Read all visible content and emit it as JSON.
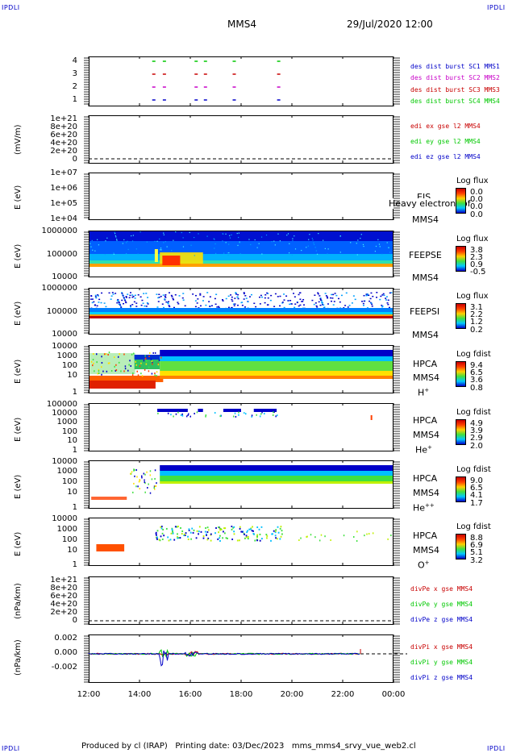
{
  "corners": {
    "tl": "IPDLI",
    "tr": "IPDLI",
    "bl": "IPDLI",
    "br": "IPDLI"
  },
  "header": {
    "spacecraft": "MMS4",
    "datetime": "29/Jul/2020 12:00"
  },
  "panels": [
    {
      "id": "burst",
      "ylabel": "",
      "yticks": [
        "4",
        "3",
        "2",
        "1"
      ],
      "legend": [
        {
          "text": "des dist burst SC1 MMS1",
          "color": "#0000c8"
        },
        {
          "text": "des dist burst SC2 MMS2",
          "color": "#c800c8"
        },
        {
          "text": "des dist burst SC3 MMS3",
          "color": "#c80000"
        },
        {
          "text": "des dist burst SC4 MMS4",
          "color": "#00c800"
        }
      ]
    },
    {
      "id": "edi",
      "ylabel": "(mV/m)",
      "yticks": [
        "1e+21",
        "8e+20",
        "6e+20",
        "4e+20",
        "2e+20",
        "0"
      ],
      "legend": [
        {
          "text": "edi ex gse l2 MMS4",
          "color": "#c80000"
        },
        {
          "text": "edi ey gse l2 MMS4",
          "color": "#00c800"
        },
        {
          "text": "edi ez gse l2 MMS4",
          "color": "#0000c8"
        }
      ]
    },
    {
      "id": "eis",
      "ylabel": "E (eV)",
      "yticks": [
        "1e+07",
        "1e+06",
        "1e+05",
        "1e+04"
      ],
      "side": [
        "EIS",
        "MMS4"
      ],
      "overlay": "Heavy electron tof",
      "cb": {
        "title": "Log flux",
        "vals": [
          "0.0",
          "0.0",
          "0.0",
          "0.0"
        ]
      }
    },
    {
      "id": "feepse",
      "ylabel": "E (eV)",
      "yticks": [
        "1000000",
        "100000",
        "10000"
      ],
      "side": [
        "FEEPSE",
        "MMS4"
      ],
      "cb": {
        "title": "Log flux",
        "vals": [
          "3.8",
          "2.3",
          "0.9",
          "-0.5"
        ]
      }
    },
    {
      "id": "feepsi",
      "ylabel": "E (eV)",
      "yticks": [
        "1000000",
        "100000",
        "10000"
      ],
      "side": [
        "FEEPSI",
        "MMS4"
      ],
      "cb": {
        "title": "Log flux",
        "vals": [
          "3.1",
          "2.2",
          "1.2",
          "0.2"
        ]
      }
    },
    {
      "id": "hpca_h",
      "ylabel": "E (eV)",
      "yticks": [
        "10000",
        "1000",
        "100",
        "10",
        "1"
      ],
      "side": [
        "HPCA",
        "MMS4"
      ],
      "species": "H",
      "species_sup": "+",
      "cb": {
        "title": "Log fdist",
        "vals": [
          "9.4",
          "6.5",
          "3.6",
          "0.8"
        ]
      }
    },
    {
      "id": "hpca_he",
      "ylabel": "E (eV)",
      "yticks": [
        "100000",
        "10000",
        "1000",
        "100",
        "10",
        "1"
      ],
      "side": [
        "HPCA",
        "MMS4"
      ],
      "species": "He",
      "species_sup": "+",
      "cb": {
        "title": "Log fdist",
        "vals": [
          "4.9",
          "3.9",
          "2.9",
          "2.0"
        ]
      }
    },
    {
      "id": "hpca_he2",
      "ylabel": "E (eV)",
      "yticks": [
        "10000",
        "1000",
        "100",
        "10",
        "1"
      ],
      "side": [
        "HPCA",
        "MMS4"
      ],
      "species": "He",
      "species_sup": "++",
      "cb": {
        "title": "Log fdist",
        "vals": [
          "9.0",
          "6.5",
          "4.1",
          "1.7"
        ]
      }
    },
    {
      "id": "hpca_o",
      "ylabel": "E (eV)",
      "yticks": [
        "10000",
        "1000",
        "100",
        "10",
        "1"
      ],
      "side": [
        "HPCA",
        "MMS4"
      ],
      "species": "O",
      "species_sup": "+",
      "cb": {
        "title": "Log fdist",
        "vals": [
          "8.8",
          "6.9",
          "5.1",
          "3.2"
        ]
      }
    },
    {
      "id": "divpe",
      "ylabel": "(nPa/km)",
      "yticks": [
        "1e+21",
        "8e+20",
        "6e+20",
        "4e+20",
        "2e+20",
        "0"
      ],
      "legend": [
        {
          "text": "divPe x gse MMS4",
          "color": "#c80000"
        },
        {
          "text": "divPe y gse MMS4",
          "color": "#00c800"
        },
        {
          "text": "divPe z gse MMS4",
          "color": "#0000c8"
        }
      ]
    },
    {
      "id": "divpi",
      "ylabel": "(nPa/km)",
      "yticks": [
        "0.002",
        "0.000",
        "-0.002"
      ],
      "legend": [
        {
          "text": "divPi x gse MMS4",
          "color": "#c80000"
        },
        {
          "text": "divPi y gse MMS4",
          "color": "#00c800"
        },
        {
          "text": "divPi z gse MMS4",
          "color": "#0000c8"
        }
      ]
    }
  ],
  "chart_data": {
    "type": "line",
    "title": "MMS4",
    "xlabel": "",
    "x_ticks": [
      "12:00",
      "14:00",
      "16:00",
      "18:00",
      "20:00",
      "22:00",
      "00:00"
    ],
    "xlim": [
      "12:00",
      "00:00"
    ],
    "burst_intervals": [
      {
        "name": "des dist burst SC4 MMS4",
        "level": 4,
        "times": [
          "14:30",
          "14:55",
          "16:10",
          "16:32",
          "17:40",
          "19:25"
        ]
      },
      {
        "name": "des dist burst SC3 MMS3",
        "level": 3,
        "times": [
          "14:30",
          "14:55",
          "16:10",
          "16:32",
          "17:40",
          "19:25"
        ]
      },
      {
        "name": "des dist burst SC2 MMS2",
        "level": 2,
        "times": [
          "14:30",
          "14:55",
          "16:10",
          "16:32",
          "17:40",
          "19:25"
        ]
      },
      {
        "name": "des dist burst SC1 MMS1",
        "level": 1,
        "times": [
          "14:30",
          "14:55",
          "16:10",
          "16:32",
          "17:40",
          "19:25"
        ]
      }
    ],
    "divpi_ylim": [
      -0.003,
      0.003
    ]
  },
  "footer": {
    "text": "Produced by cl (IRAP)   Printing date: 03/Dec/2023   mms_mms4_srvy_vue_web2.cl"
  }
}
